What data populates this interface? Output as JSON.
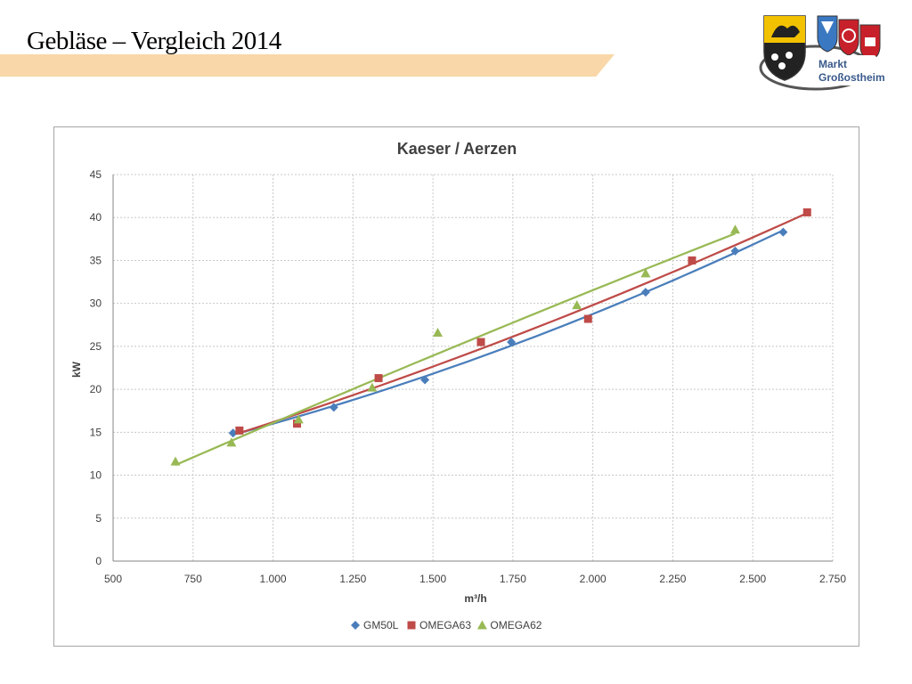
{
  "slide": {
    "title": "Gebläse – Vergleich 2014",
    "logo_text_line1": "Markt",
    "logo_text_line2": "Großostheim"
  },
  "colors": {
    "band": "#f9d7a8",
    "GM50L": "#4a7ebb",
    "OMEGA63": "#be4b48",
    "OMEGA62": "#98b954"
  },
  "chart_data": {
    "type": "scatter",
    "title": "Kaeser / Aerzen",
    "xlabel": "m³/h",
    "ylabel": "kW",
    "xlim": [
      500,
      2750
    ],
    "ylim": [
      0,
      45
    ],
    "xticks": [
      500,
      750,
      1000,
      1250,
      1500,
      1750,
      2000,
      2250,
      2500,
      2750
    ],
    "xtick_labels": [
      "500",
      "750",
      "1.000",
      "1.250",
      "1.500",
      "1.750",
      "2.000",
      "2.250",
      "2.500",
      "2.750"
    ],
    "yticks": [
      0,
      5,
      10,
      15,
      20,
      25,
      30,
      35,
      40,
      45
    ],
    "grid": true,
    "legend_position": "bottom",
    "trendlines": true,
    "series": [
      {
        "name": "GM50L",
        "marker": "diamond",
        "x": [
          875,
          1190,
          1475,
          1745,
          2165,
          2445,
          2595
        ],
        "y": [
          14.9,
          17.9,
          21.1,
          25.5,
          31.3,
          36.1,
          38.3
        ],
        "trend_range": [
          875,
          2595
        ]
      },
      {
        "name": "OMEGA63",
        "marker": "square",
        "x": [
          895,
          1075,
          1330,
          1650,
          1985,
          2310,
          2670
        ],
        "y": [
          15.2,
          16.0,
          21.3,
          25.5,
          28.2,
          35.0,
          40.6
        ],
        "trend_range": [
          895,
          2670
        ]
      },
      {
        "name": "OMEGA62",
        "marker": "triangle",
        "x": [
          695,
          870,
          1080,
          1310,
          1515,
          1950,
          2165,
          2445
        ],
        "y": [
          11.6,
          13.8,
          16.5,
          20.2,
          26.6,
          29.8,
          33.5,
          38.6
        ],
        "trend_range": [
          695,
          2445
        ]
      }
    ]
  }
}
